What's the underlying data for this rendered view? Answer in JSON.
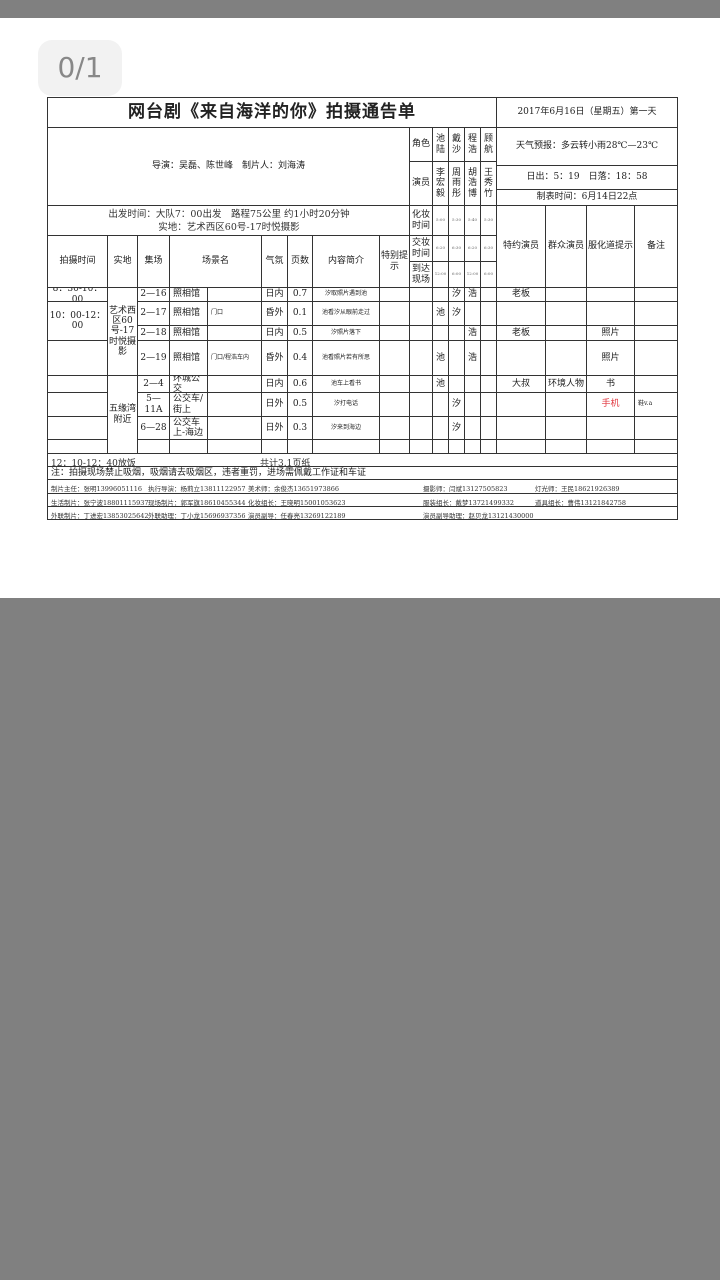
{
  "viewer": {
    "page_indicator": "0/1"
  },
  "notice": {
    "title": "网台剧《来自海洋的你》拍摄通告单",
    "date": "2017年6月16日（星期五）第一天",
    "crew": "导演：吴磊、陈世峰　制片人：刘海涛",
    "departure": "出发时间：大队7：00出发　路程75公里 约1小时20分钟",
    "location": "实地：艺术西区60号-17时悦摄影",
    "weather": "天气预报：多云转小雨28℃—23℃",
    "sun": "日出：5：19　日落：18：58",
    "made_time": "制表时间：6月14日22点"
  },
  "cast": {
    "role_label": "角色",
    "roles": [
      "池陆",
      "戴沙",
      "程浩",
      "顾航"
    ],
    "actor_label": "演员",
    "actors": [
      "李宏毅",
      "周雨彤",
      "胡浩博",
      "王秀竹"
    ],
    "makeup_label": "化妆时间",
    "makeup": [
      "5:00",
      "5:30",
      "5:40",
      "5:30"
    ],
    "ready_label": "交妆时间",
    "ready": [
      "6:20",
      "6:30",
      "6:20",
      "6:30"
    ],
    "arrive_label": "到达现场",
    "arrive": [
      "12:00",
      "6:00",
      "12:00",
      "6:00"
    ]
  },
  "headers": {
    "time": "拍摄时间",
    "location": "实地",
    "scene": "集场",
    "set": "场景名",
    "mood": "气氛",
    "pages": "页数",
    "summary": "内容简介",
    "special": "特别提示",
    "guest": "特约演员",
    "extras": "群众演员",
    "props": "服化道提示",
    "remarks": "备注"
  },
  "locations": [
    "艺术西区60号-17时悦摄影",
    "五缘湾附近"
  ],
  "times": [
    "8：30-10：00",
    "10：00-12：00"
  ],
  "rows": [
    {
      "scene": "2—16",
      "set": "照相馆",
      "sub": "",
      "mood": "日内",
      "pages": "0.7",
      "summary": "汐取照片遇到池",
      "chars": [
        "",
        "汐",
        "浩",
        ""
      ],
      "guest": "老板",
      "extras": "",
      "props": "",
      "remarks": ""
    },
    {
      "scene": "2—17",
      "set": "照相馆",
      "sub": "门口",
      "mood": "昏外",
      "pages": "0.1",
      "summary": "池看汐从眼前走过",
      "chars": [
        "池",
        "汐",
        "",
        ""
      ],
      "guest": "",
      "extras": "",
      "props": "",
      "remarks": ""
    },
    {
      "scene": "2—18",
      "set": "照相馆",
      "sub": "",
      "mood": "日内",
      "pages": "0.5",
      "summary": "汐照片落下",
      "chars": [
        "",
        "",
        "浩",
        ""
      ],
      "guest": "老板",
      "extras": "",
      "props": "照片",
      "remarks": ""
    },
    {
      "scene": "2—19",
      "set": "照相馆",
      "sub": "门口/程浩车内",
      "mood": "昏外",
      "pages": "0.4",
      "summary": "池看照片若有所思",
      "chars": [
        "池",
        "",
        "浩",
        ""
      ],
      "guest": "",
      "extras": "",
      "props": "照片",
      "remarks": ""
    },
    {
      "scene": "2—4",
      "set": "环城公交",
      "sub": "",
      "mood": "日内",
      "pages": "0.6",
      "summary": "池车上看书",
      "chars": [
        "池",
        "",
        "",
        ""
      ],
      "guest": "大叔",
      "extras": "环境人物",
      "props": "书",
      "remarks": ""
    },
    {
      "scene": "5—11A",
      "set": "公交车/街上",
      "sub": "",
      "mood": "日外",
      "pages": "0.5",
      "summary": "汐打电话",
      "chars": [
        "",
        "汐",
        "",
        ""
      ],
      "guest": "",
      "extras": "",
      "props": "手机",
      "remarks": "鞋v.a"
    },
    {
      "scene": "6—28",
      "set": "公交车上-海边",
      "sub": "",
      "mood": "日外",
      "pages": "0.3",
      "summary": "汐来到海边",
      "chars": [
        "",
        "汐",
        "",
        ""
      ],
      "guest": "",
      "extras": "",
      "props": "",
      "remarks": ""
    }
  ],
  "footer": {
    "meal": "12：10-12：40放饭",
    "total": "共计3.1页纸",
    "note": "注：拍摄现场禁止吸烟，吸烟请去吸烟区，违者重罚，进场需佩戴工作证和车证",
    "contacts": [
      [
        "制片主任：张明13996051116",
        "执行导演：杨莉立13811122957",
        "美术师：余俊杰13651973866",
        "摄影师：闫斌13127505823",
        "灯光师：王民18621926389"
      ],
      [
        "生活制片：张宁波18801115937",
        "现场制片：郭军旗18610455344",
        "化妆组长：王晓明15001053623",
        "服装组长：戴梦13721499332",
        "道具组长：曹伟13121842758"
      ],
      [
        "外联制片：丁进宏13853025642",
        "外联助理：丁小龙15696937356",
        "演员副导：任春亮13269122189",
        "演员副导助理：赵贝龙13121430000"
      ]
    ]
  },
  "colors": {
    "highlight": "#e0343c",
    "background": "#808080"
  }
}
